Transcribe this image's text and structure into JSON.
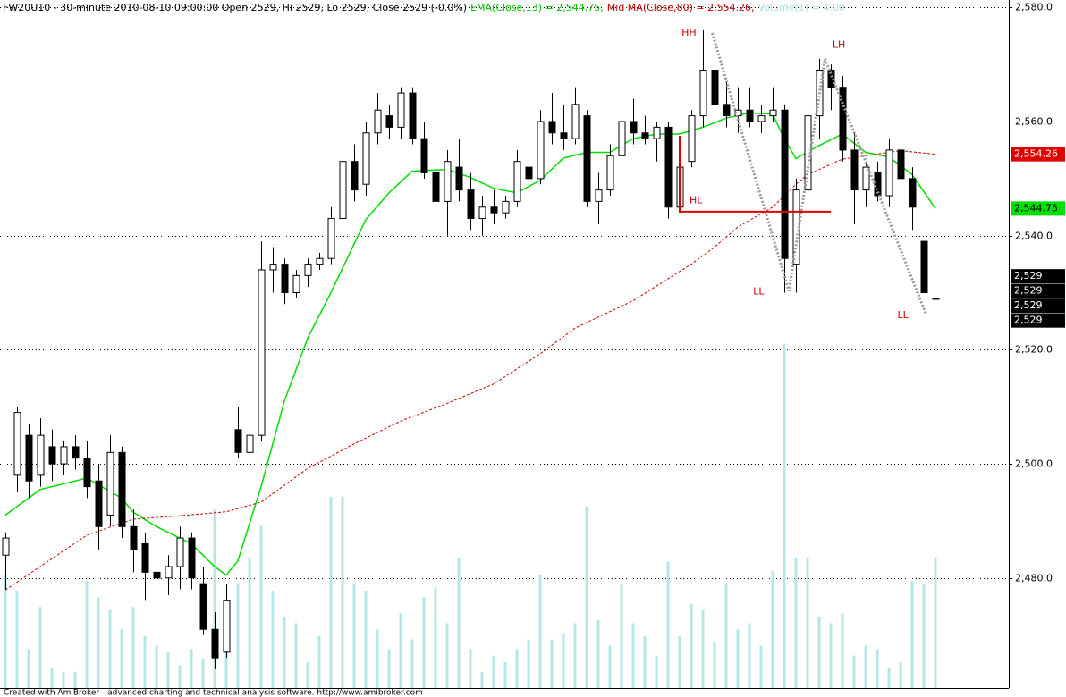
{
  "chart_data": {
    "type": "candlestick",
    "header": [
      {
        "text": "FW20U10 - 30-minute 2010-08-10 09:00:00 Open 2529, Hi 2529, Lo 2529, Close 2529 (-0.0%)",
        "color": "#000000"
      },
      {
        "text": "EMA(Close,13) = 2,544.75,",
        "color": "#00c000"
      },
      {
        "text": "Mid MA(Close,80) = 2,554.26,",
        "color": "#c00000"
      },
      {
        "text": "Volume(1) = 4.00",
        "color": "#a8e4e4"
      }
    ],
    "footer": "Created with AmiBroker - advanced charting and technical analysis software. http://www.amibroker.com",
    "ylim": [
      2460.7,
      2581.3
    ],
    "yticks": [
      {
        "value": 2480,
        "label": "2,480.0"
      },
      {
        "value": 2500,
        "label": "2,500.0"
      },
      {
        "value": 2520,
        "label": "2,520.0"
      },
      {
        "value": 2540,
        "label": "2,540.0"
      },
      {
        "value": 2560,
        "label": "2,560.0"
      },
      {
        "value": 2580,
        "label": "2,580.0"
      }
    ],
    "grid": true,
    "open": [
      2484,
      2498,
      2505,
      2498,
      2503,
      2500,
      2503,
      2501,
      2497,
      2491,
      2502,
      2489,
      2486,
      2481,
      2480,
      2482,
      2487,
      2479,
      2471,
      2467,
      2506,
      2502,
      2505,
      2534,
      2535,
      2530,
      2533,
      2535,
      2536,
      2543,
      2553,
      2549,
      2558,
      2561,
      2559,
      2565,
      2557,
      2551,
      2546,
      2552,
      2548,
      2543,
      2545,
      2544,
      2546,
      2552,
      2550,
      2560,
      2558,
      2557,
      2561,
      2546,
      2548,
      2554,
      2560,
      2558,
      2557,
      2559,
      2545,
      2553,
      2561,
      2569,
      2563,
      2561,
      2562,
      2560,
      2561,
      2562,
      2535,
      2548,
      2561,
      2569,
      2566,
      2555,
      2548,
      2551,
      2547,
      2555,
      2550,
      2539,
      2529
    ],
    "high": [
      2488,
      2510,
      2507,
      2508,
      2506,
      2504,
      2505,
      2504,
      2500,
      2505,
      2503,
      2492,
      2488,
      2485,
      2484,
      2489,
      2488,
      2482,
      2474,
      2479,
      2510,
      2505,
      2539,
      2538,
      2536,
      2534,
      2536,
      2537,
      2545,
      2555,
      2556,
      2560,
      2565,
      2563,
      2566,
      2566,
      2560,
      2556,
      2555,
      2557,
      2551,
      2547,
      2548,
      2547,
      2555,
      2556,
      2562,
      2565,
      2563,
      2566,
      2562,
      2551,
      2556,
      2562,
      2564,
      2561,
      2560,
      2560,
      2557,
      2562,
      2576,
      2574,
      2567,
      2566,
      2566,
      2563,
      2566,
      2563,
      2550,
      2562,
      2571,
      2570,
      2568,
      2558,
      2553,
      2553,
      2557,
      2556,
      2552,
      2539,
      2529
    ],
    "low": [
      2478,
      2495,
      2494,
      2496,
      2497,
      2498,
      2499,
      2494,
      2485,
      2489,
      2487,
      2481,
      2476,
      2478,
      2477,
      2478,
      2478,
      2470,
      2464,
      2466,
      2501,
      2497,
      2504,
      2530,
      2528,
      2529,
      2531,
      2534,
      2535,
      2541,
      2546,
      2547,
      2556,
      2557,
      2557,
      2556,
      2550,
      2543,
      2540,
      2546,
      2541,
      2540,
      2542,
      2543,
      2545,
      2549,
      2549,
      2556,
      2555,
      2556,
      2545,
      2542,
      2547,
      2553,
      2556,
      2556,
      2553,
      2543,
      2544,
      2552,
      2559,
      2561,
      2559,
      2558,
      2559,
      2558,
      2560,
      2530,
      2530,
      2546,
      2557,
      2562,
      2553,
      2542,
      2545,
      2546,
      2545,
      2547,
      2541,
      2530,
      2529
    ],
    "close": [
      2487,
      2509,
      2497,
      2505,
      2500,
      2503,
      2501,
      2496,
      2489,
      2502,
      2489,
      2485,
      2481,
      2480,
      2482,
      2487,
      2480,
      2471,
      2466,
      2476,
      2502,
      2505,
      2534,
      2535,
      2530,
      2533,
      2535,
      2536,
      2543,
      2553,
      2548,
      2558,
      2562,
      2559,
      2565,
      2557,
      2551,
      2546,
      2553,
      2548,
      2543,
      2545,
      2544,
      2546,
      2553,
      2550,
      2560,
      2558,
      2557,
      2563,
      2546,
      2548,
      2554,
      2560,
      2558,
      2557,
      2559,
      2545,
      2552,
      2561,
      2569,
      2563,
      2561,
      2562,
      2560,
      2561,
      2562,
      2536,
      2548,
      2561,
      2569,
      2566,
      2555,
      2548,
      2552,
      2547,
      2555,
      2550,
      2545,
      2530,
      2529
    ],
    "volume": {
      "color": "#b4e6e6",
      "ylim": [
        0,
        21.2
      ],
      "values": [
        3.5,
        3.0,
        1.2,
        2.5,
        0.6,
        0.5,
        0.5,
        3.3,
        2.8,
        2.4,
        1.8,
        2.5,
        1.6,
        1.3,
        1.1,
        0.7,
        1.2,
        0.9,
        5.5,
        2.7,
        3.2,
        4.0,
        5.0,
        3.0,
        2.2,
        2.0,
        0.8,
        1.6,
        5.9,
        5.9,
        3.2,
        3.0,
        1.8,
        1.2,
        2.3,
        1.5,
        2.8,
        3.1,
        2.0,
        4.0,
        1.2,
        0.5,
        1.0,
        0.8,
        1.2,
        1.5,
        3.5,
        1.5,
        1.7,
        2.0,
        5.6,
        2.1,
        1.3,
        3.2,
        2.0,
        1.6,
        1.0,
        3.9,
        1.6,
        2.6,
        2.4,
        1.4,
        3.2,
        1.8,
        2.0,
        1.3,
        3.6,
        10.6,
        4.0,
        4.0,
        2.2,
        2.0,
        2.3,
        1.0,
        1.3,
        1.2,
        0.6,
        0.8,
        3.3,
        3.2,
        4.0
      ]
    },
    "lines": [
      {
        "color": "#00dd00",
        "dash": false,
        "x": [
          0,
          3,
          7,
          10,
          11,
          13,
          16,
          18,
          19,
          20,
          22,
          24,
          26,
          28,
          31,
          33,
          35,
          38,
          40,
          42,
          44,
          46,
          48,
          50,
          52,
          54,
          56,
          58,
          60,
          62,
          64,
          66,
          67,
          68,
          70,
          72,
          74,
          76,
          78,
          80
        ],
        "values": [
          2491,
          2495.5,
          2497.5,
          2494,
          2491.5,
          2489,
          2486,
          2482,
          2480.5,
          2483,
          2496,
          2511,
          2522,
          2530,
          2542.8,
          2547.5,
          2551.3,
          2551.6,
          2550.2,
          2548.3,
          2547.5,
          2549.7,
          2553.6,
          2554.6,
          2554.6,
          2557,
          2557.8,
          2557.8,
          2559,
          2560.6,
          2561.5,
          2561.3,
          2557,
          2553.5,
          2555.8,
          2557.8,
          2554.6,
          2553.8,
          2550.7,
          2544.75
        ]
      },
      {
        "color": "#cc0000",
        "dash": true,
        "x": [
          0,
          3,
          7,
          11,
          15,
          19,
          22,
          26,
          30,
          34,
          38,
          42,
          46,
          49,
          54,
          59,
          61,
          63,
          66,
          68,
          69,
          72,
          75,
          77,
          80
        ],
        "values": [
          2477.9,
          2482,
          2487.5,
          2490.3,
          2490.9,
          2491.6,
          2493.3,
          2499.2,
          2503.5,
          2507.5,
          2510.6,
          2514,
          2519.3,
          2523.8,
          2528.6,
          2535,
          2538,
          2541.5,
          2545,
          2549,
          2550.7,
          2553.4,
          2554.3,
          2554.9,
          2554.26
        ]
      }
    ],
    "markers": [
      {
        "value": 2554.26,
        "label": "2,554.26",
        "color": "#e00000",
        "text_color": "#ffffff",
        "slot": 0
      },
      {
        "value": 2544.75,
        "label": "2,544.75",
        "color": "#00e000",
        "text_color": "#000000",
        "slot": 0
      },
      {
        "value": 2529,
        "label": "2,529",
        "color": "#000000",
        "text_color": "#ffffff",
        "slot": -1.5
      },
      {
        "value": 2529,
        "label": "2,529",
        "color": "#000000",
        "text_color": "#ffffff",
        "slot": -0.5
      },
      {
        "value": 2529,
        "label": "2,529",
        "color": "#000000",
        "text_color": "#ffffff",
        "slot": 0.5
      },
      {
        "value": 2529,
        "label": "2,529",
        "color": "#000000",
        "text_color": "#ffffff",
        "slot": 1.5
      }
    ],
    "annotations": [
      {
        "text": "HH",
        "x": 58.8,
        "y": 2575.5
      },
      {
        "text": "LH",
        "x": 71.7,
        "y": 2573.4
      },
      {
        "text": "HL",
        "x": 59.4,
        "y": 2546.1
      },
      {
        "text": "LL",
        "x": 64.8,
        "y": 2530.2
      },
      {
        "text": "LL",
        "x": 77.2,
        "y": 2526
      }
    ],
    "drawings": [
      {
        "color": "#999999",
        "width": 3,
        "dash": "2 2",
        "x": [
          60.8,
          67.4,
          70.5,
          79.2
        ],
        "values": [
          2575.5,
          2530.3,
          2571,
          2526.2
        ]
      },
      {
        "color": "#dd0000",
        "width": 2,
        "dash": "",
        "x": [
          58,
          58,
          71
        ],
        "values": [
          2557.5,
          2544.2,
          2544.2
        ]
      }
    ],
    "annotation_color": "#cc0000"
  }
}
